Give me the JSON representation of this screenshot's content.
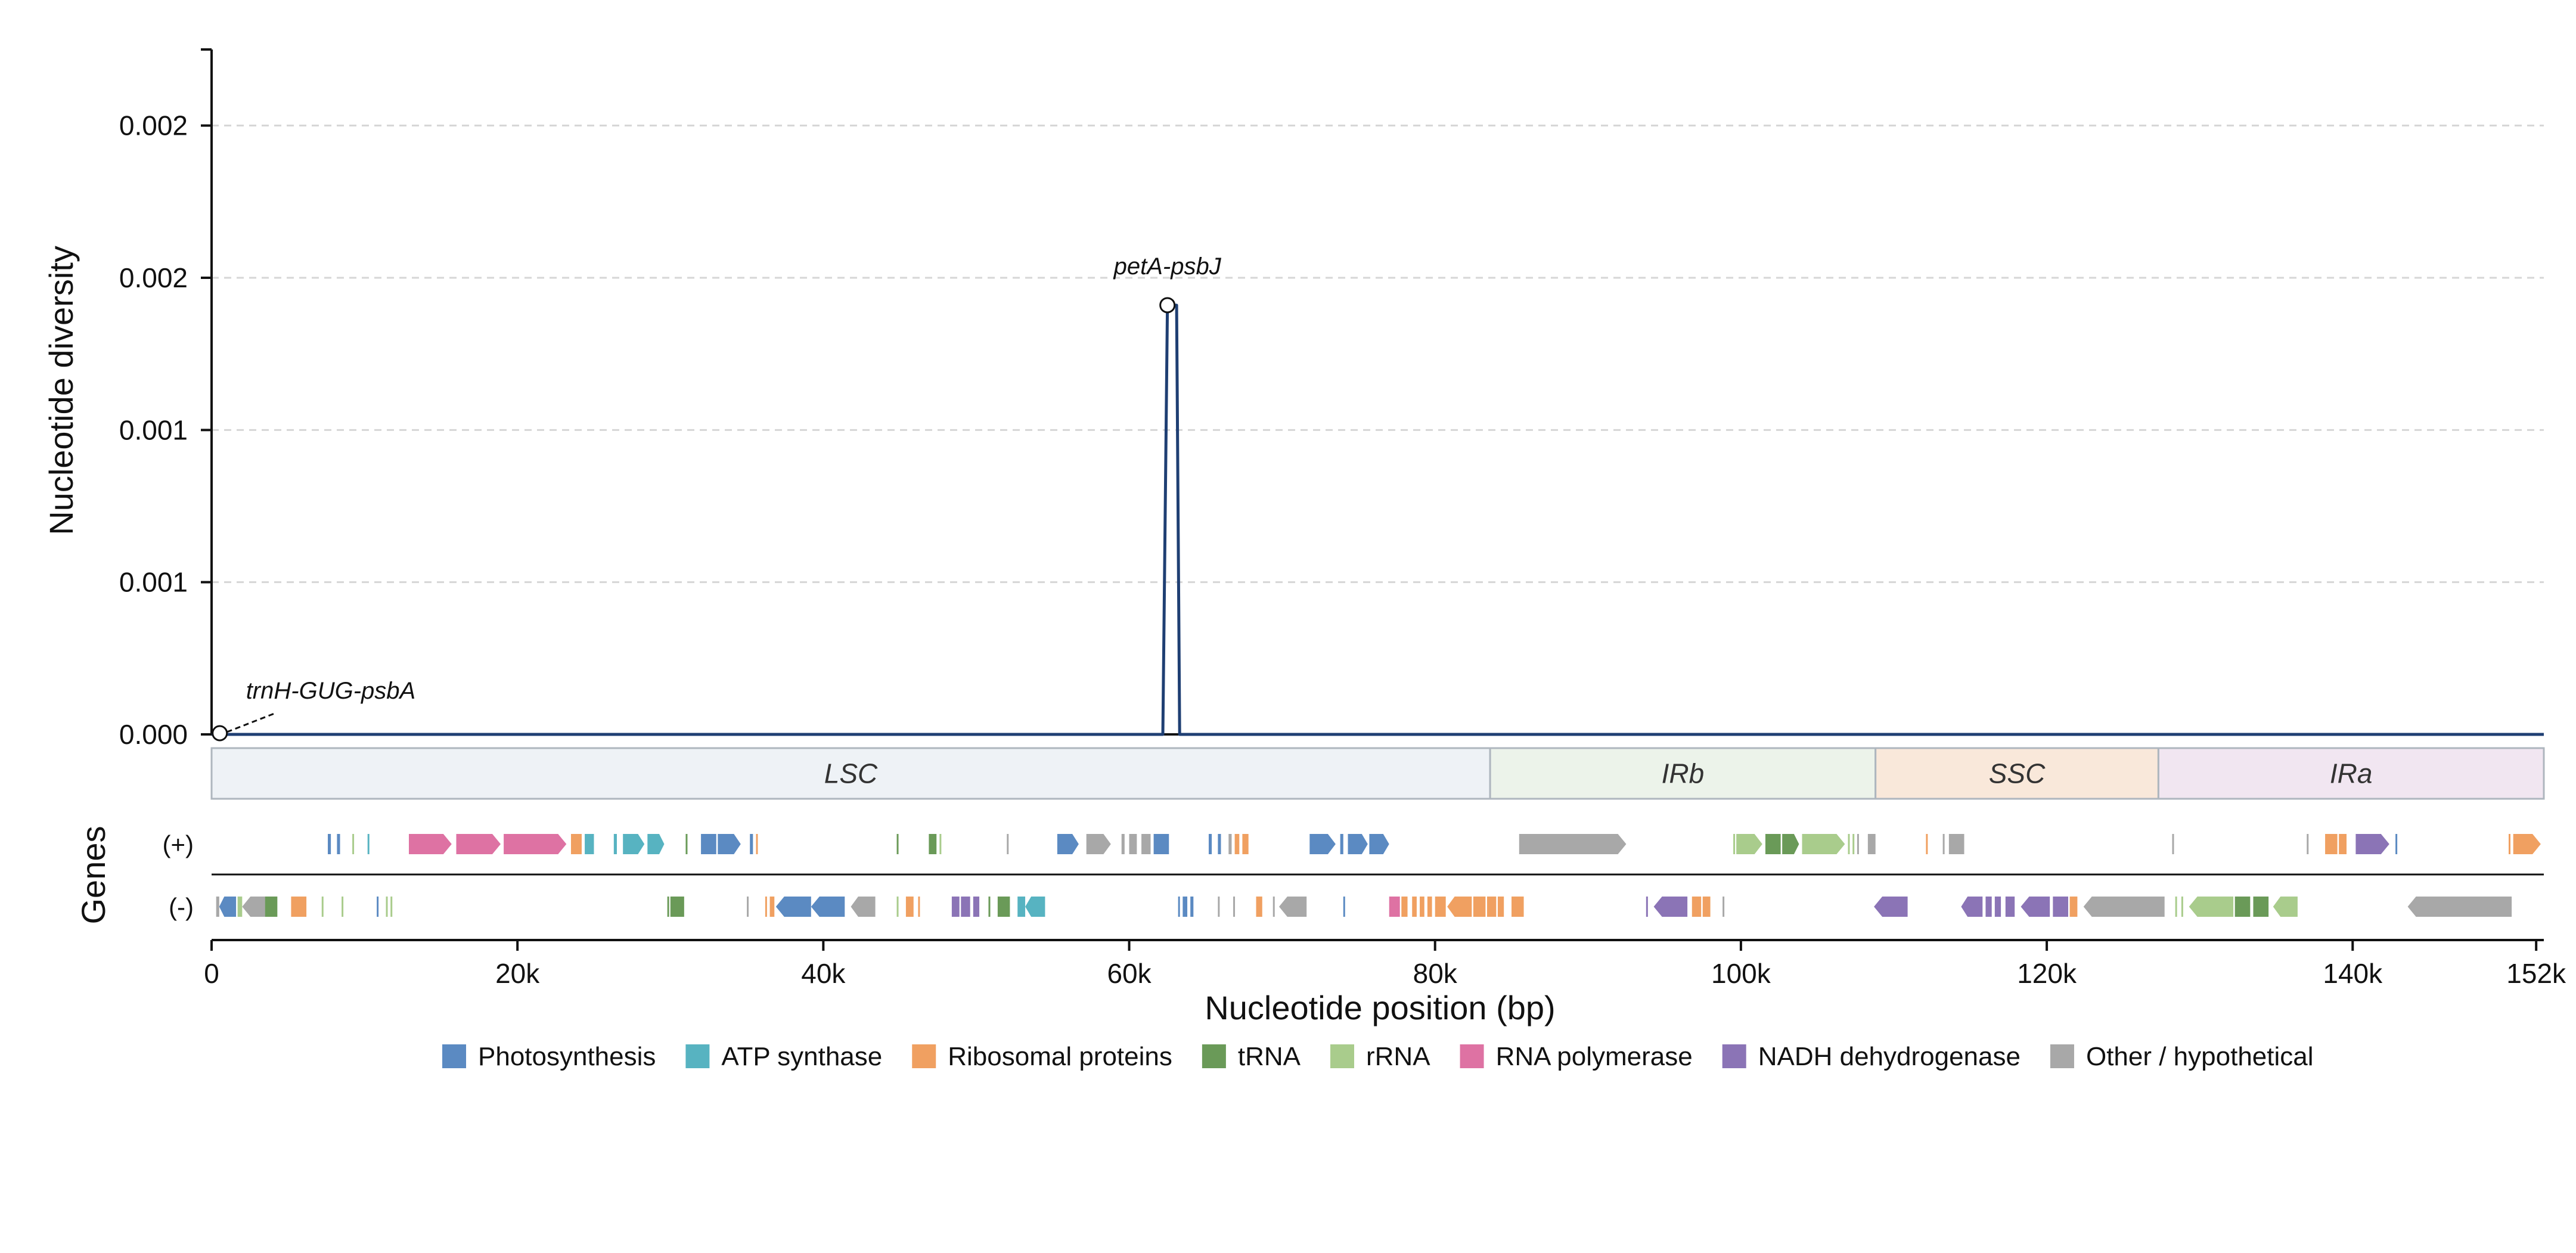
{
  "chart_data": {
    "type": "line",
    "ylabel": "Nucleotide diversity",
    "xlabel": "Nucleotide position (bp)",
    "xlim": [
      0,
      152500
    ],
    "ylim": [
      0,
      0.00225
    ],
    "grid": true,
    "x_ticks": [
      0,
      20000,
      40000,
      60000,
      80000,
      100000,
      120000,
      140000,
      152000
    ],
    "x_tick_labels": [
      "0",
      "20k",
      "40k",
      "60k",
      "80k",
      "100k",
      "120k",
      "140k",
      "152k"
    ],
    "y_ticks": [
      0,
      0.0005,
      0.001,
      0.0015,
      0.002
    ],
    "y_tick_labels": [
      "0.000",
      "0.001",
      "0.001",
      "0.002",
      "0.002"
    ],
    "series": [
      {
        "color": "#1f3f73",
        "x": [
          0,
          62200,
          62500,
          63100,
          63300,
          152500
        ],
        "y": [
          0,
          0,
          0.00141,
          0.00141,
          0,
          0
        ]
      }
    ],
    "annotations": [
      {
        "text": "trnH-GUG-psbA",
        "x": 300,
        "y": 0
      },
      {
        "text": "petA-psbJ",
        "x": 62500,
        "y": 0.00141
      }
    ],
    "regions": [
      {
        "name": "LSC",
        "start": 0,
        "end": 83600,
        "color": "#eef2f6"
      },
      {
        "name": "IRb",
        "start": 83600,
        "end": 108800,
        "color": "#ecf3ea"
      },
      {
        "name": "SSC",
        "start": 108800,
        "end": 127300,
        "color": "#f9e8da"
      },
      {
        "name": "IRa",
        "start": 127300,
        "end": 152500,
        "color": "#f1e6f1"
      }
    ],
    "gene_track_label": "Genes",
    "strand_labels": [
      "(+)",
      "(-)"
    ],
    "legend": [
      {
        "label": "Photosynthesis",
        "color": "#5b8ac2"
      },
      {
        "label": "ATP synthase",
        "color": "#57b3c1"
      },
      {
        "label": "Ribosomal proteins",
        "color": "#f0a061"
      },
      {
        "label": "tRNA",
        "color": "#6a9a58"
      },
      {
        "label": "rRNA",
        "color": "#a9cc8c"
      },
      {
        "label": "RNA polymerase",
        "color": "#de72a3"
      },
      {
        "label": "NADH dehydrogenase",
        "color": "#8b74b6"
      },
      {
        "label": "Other / hypothetical",
        "color": "#a8a8a8"
      }
    ],
    "genes": [
      {
        "strand": "+",
        "start": 7600,
        "end": 7800,
        "cat": "Photosynthesis"
      },
      {
        "strand": "+",
        "start": 8200,
        "end": 8400,
        "cat": "Photosynthesis"
      },
      {
        "strand": "+",
        "start": 9200,
        "end": 9300,
        "cat": "rRNA"
      },
      {
        "strand": "+",
        "start": 10200,
        "end": 10300,
        "cat": "ATP synthase"
      },
      {
        "strand": "+",
        "start": 12900,
        "end": 15700,
        "cat": "RNA polymerase"
      },
      {
        "strand": "+",
        "start": 16000,
        "end": 18900,
        "cat": "RNA polymerase"
      },
      {
        "strand": "+",
        "start": 19100,
        "end": 23200,
        "cat": "RNA polymerase"
      },
      {
        "strand": "+",
        "start": 23500,
        "end": 24200,
        "cat": "Ribosomal proteins"
      },
      {
        "strand": "+",
        "start": 24400,
        "end": 25000,
        "cat": "ATP synthase"
      },
      {
        "strand": "+",
        "start": 26300,
        "end": 26500,
        "cat": "ATP synthase"
      },
      {
        "strand": "+",
        "start": 26900,
        "end": 28300,
        "cat": "ATP synthase"
      },
      {
        "strand": "+",
        "start": 28500,
        "end": 29600,
        "cat": "ATP synthase"
      },
      {
        "strand": "+",
        "start": 31000,
        "end": 31100,
        "cat": "tRNA"
      },
      {
        "strand": "+",
        "start": 32000,
        "end": 33000,
        "cat": "Photosynthesis"
      },
      {
        "strand": "+",
        "start": 33100,
        "end": 34600,
        "cat": "Photosynthesis"
      },
      {
        "strand": "+",
        "start": 35200,
        "end": 35400,
        "cat": "Photosynthesis"
      },
      {
        "strand": "+",
        "start": 35600,
        "end": 35700,
        "cat": "Ribosomal proteins"
      },
      {
        "strand": "+",
        "start": 44800,
        "end": 44900,
        "cat": "tRNA"
      },
      {
        "strand": "+",
        "start": 46900,
        "end": 47400,
        "cat": "tRNA"
      },
      {
        "strand": "+",
        "start": 47600,
        "end": 47700,
        "cat": "rRNA"
      },
      {
        "strand": "+",
        "start": 52000,
        "end": 52100,
        "cat": "Other / hypothetical"
      },
      {
        "strand": "+",
        "start": 55300,
        "end": 56700,
        "cat": "Photosynthesis"
      },
      {
        "strand": "+",
        "start": 57200,
        "end": 58800,
        "cat": "Other / hypothetical"
      },
      {
        "strand": "+",
        "start": 59500,
        "end": 59700,
        "cat": "Other / hypothetical"
      },
      {
        "strand": "+",
        "start": 60000,
        "end": 60500,
        "cat": "Other / hypothetical"
      },
      {
        "strand": "+",
        "start": 60800,
        "end": 61400,
        "cat": "Other / hypothetical"
      },
      {
        "strand": "+",
        "start": 61600,
        "end": 62600,
        "cat": "Photosynthesis"
      },
      {
        "strand": "+",
        "start": 65200,
        "end": 65400,
        "cat": "Photosynthesis"
      },
      {
        "strand": "+",
        "start": 65800,
        "end": 66000,
        "cat": "Photosynthesis"
      },
      {
        "strand": "+",
        "start": 66500,
        "end": 66700,
        "cat": "Other / hypothetical"
      },
      {
        "strand": "+",
        "start": 66900,
        "end": 67200,
        "cat": "Ribosomal proteins"
      },
      {
        "strand": "+",
        "start": 67400,
        "end": 67800,
        "cat": "Ribosomal proteins"
      },
      {
        "strand": "+",
        "start": 71800,
        "end": 73500,
        "cat": "Photosynthesis"
      },
      {
        "strand": "+",
        "start": 73800,
        "end": 74000,
        "cat": "Photosynthesis"
      },
      {
        "strand": "+",
        "start": 74300,
        "end": 75600,
        "cat": "Photosynthesis"
      },
      {
        "strand": "+",
        "start": 75700,
        "end": 77000,
        "cat": "Photosynthesis"
      },
      {
        "strand": "+",
        "start": 85500,
        "end": 92500,
        "cat": "Other / hypothetical"
      },
      {
        "strand": "+",
        "start": 99500,
        "end": 99600,
        "cat": "rRNA"
      },
      {
        "strand": "+",
        "start": 99700,
        "end": 101400,
        "cat": "rRNA"
      },
      {
        "strand": "+",
        "start": 101600,
        "end": 102600,
        "cat": "tRNA"
      },
      {
        "strand": "+",
        "start": 102700,
        "end": 103800,
        "cat": "tRNA"
      },
      {
        "strand": "+",
        "start": 104000,
        "end": 106800,
        "cat": "rRNA"
      },
      {
        "strand": "+",
        "start": 107000,
        "end": 107100,
        "cat": "rRNA"
      },
      {
        "strand": "+",
        "start": 107300,
        "end": 107400,
        "cat": "rRNA"
      },
      {
        "strand": "+",
        "start": 107600,
        "end": 107700,
        "cat": "Other / hypothetical"
      },
      {
        "strand": "+",
        "start": 108300,
        "end": 108800,
        "cat": "Other / hypothetical"
      },
      {
        "strand": "+",
        "start": 112100,
        "end": 112200,
        "cat": "Ribosomal proteins"
      },
      {
        "strand": "+",
        "start": 113200,
        "end": 113300,
        "cat": "Other / hypothetical"
      },
      {
        "strand": "+",
        "start": 113600,
        "end": 114600,
        "cat": "Other / hypothetical"
      },
      {
        "strand": "+",
        "start": 128200,
        "end": 128300,
        "cat": "Other / hypothetical"
      },
      {
        "strand": "+",
        "start": 137000,
        "end": 137100,
        "cat": "Other / hypothetical"
      },
      {
        "strand": "+",
        "start": 138200,
        "end": 139000,
        "cat": "Ribosomal proteins"
      },
      {
        "strand": "+",
        "start": 139100,
        "end": 139600,
        "cat": "Ribosomal proteins"
      },
      {
        "strand": "+",
        "start": 140200,
        "end": 142400,
        "cat": "NADH dehydrogenase"
      },
      {
        "strand": "+",
        "start": 142800,
        "end": 142900,
        "cat": "Photosynthesis"
      },
      {
        "strand": "+",
        "start": 150200,
        "end": 150300,
        "cat": "Ribosomal proteins"
      },
      {
        "strand": "+",
        "start": 150500,
        "end": 152300,
        "cat": "Ribosomal proteins"
      },
      {
        "strand": "-",
        "start": 300,
        "end": 500,
        "cat": "Other / hypothetical"
      },
      {
        "strand": "-",
        "start": 500,
        "end": 1600,
        "cat": "Photosynthesis"
      },
      {
        "strand": "-",
        "start": 1700,
        "end": 2000,
        "cat": "rRNA"
      },
      {
        "strand": "-",
        "start": 2000,
        "end": 3800,
        "cat": "Other / hypothetical"
      },
      {
        "strand": "-",
        "start": 3500,
        "end": 4300,
        "cat": "tRNA"
      },
      {
        "strand": "-",
        "start": 5200,
        "end": 6200,
        "cat": "Ribosomal proteins"
      },
      {
        "strand": "-",
        "start": 7200,
        "end": 7300,
        "cat": "rRNA"
      },
      {
        "strand": "-",
        "start": 8500,
        "end": 8600,
        "cat": "rRNA"
      },
      {
        "strand": "-",
        "start": 10800,
        "end": 10900,
        "cat": "Photosynthesis"
      },
      {
        "strand": "-",
        "start": 11400,
        "end": 11500,
        "cat": "rRNA"
      },
      {
        "strand": "-",
        "start": 11700,
        "end": 11800,
        "cat": "rRNA"
      },
      {
        "strand": "-",
        "start": 29800,
        "end": 29900,
        "cat": "tRNA"
      },
      {
        "strand": "-",
        "start": 30000,
        "end": 30900,
        "cat": "tRNA"
      },
      {
        "strand": "-",
        "start": 35000,
        "end": 35100,
        "cat": "Other / hypothetical"
      },
      {
        "strand": "-",
        "start": 36200,
        "end": 36300,
        "cat": "Ribosomal proteins"
      },
      {
        "strand": "-",
        "start": 36500,
        "end": 36800,
        "cat": "Ribosomal proteins"
      },
      {
        "strand": "-",
        "start": 36900,
        "end": 39200,
        "cat": "Photosynthesis"
      },
      {
        "strand": "-",
        "start": 39200,
        "end": 41400,
        "cat": "Photosynthesis"
      },
      {
        "strand": "-",
        "start": 41800,
        "end": 43400,
        "cat": "Other / hypothetical"
      },
      {
        "strand": "-",
        "start": 44800,
        "end": 44900,
        "cat": "rRNA"
      },
      {
        "strand": "-",
        "start": 45400,
        "end": 45900,
        "cat": "Ribosomal proteins"
      },
      {
        "strand": "-",
        "start": 46200,
        "end": 46300,
        "cat": "Ribosomal proteins"
      },
      {
        "strand": "-",
        "start": 48400,
        "end": 48900,
        "cat": "NADH dehydrogenase"
      },
      {
        "strand": "-",
        "start": 49000,
        "end": 49600,
        "cat": "NADH dehydrogenase"
      },
      {
        "strand": "-",
        "start": 49800,
        "end": 50200,
        "cat": "NADH dehydrogenase"
      },
      {
        "strand": "-",
        "start": 50800,
        "end": 50900,
        "cat": "tRNA"
      },
      {
        "strand": "-",
        "start": 51400,
        "end": 52200,
        "cat": "tRNA"
      },
      {
        "strand": "-",
        "start": 52700,
        "end": 53200,
        "cat": "ATP synthase"
      },
      {
        "strand": "-",
        "start": 53200,
        "end": 54500,
        "cat": "ATP synthase"
      },
      {
        "strand": "-",
        "start": 63200,
        "end": 63300,
        "cat": "Photosynthesis"
      },
      {
        "strand": "-",
        "start": 63500,
        "end": 63800,
        "cat": "Photosynthesis"
      },
      {
        "strand": "-",
        "start": 64000,
        "end": 64200,
        "cat": "Photosynthesis"
      },
      {
        "strand": "-",
        "start": 65800,
        "end": 65900,
        "cat": "Other / hypothetical"
      },
      {
        "strand": "-",
        "start": 66800,
        "end": 66900,
        "cat": "Other / hypothetical"
      },
      {
        "strand": "-",
        "start": 68300,
        "end": 68700,
        "cat": "Ribosomal proteins"
      },
      {
        "strand": "-",
        "start": 69400,
        "end": 69500,
        "cat": "Other / hypothetical"
      },
      {
        "strand": "-",
        "start": 69800,
        "end": 71600,
        "cat": "Other / hypothetical"
      },
      {
        "strand": "-",
        "start": 74000,
        "end": 74100,
        "cat": "Photosynthesis"
      },
      {
        "strand": "-",
        "start": 77000,
        "end": 77700,
        "cat": "RNA polymerase"
      },
      {
        "strand": "-",
        "start": 77800,
        "end": 78200,
        "cat": "Ribosomal proteins"
      },
      {
        "strand": "-",
        "start": 78500,
        "end": 78800,
        "cat": "Ribosomal proteins"
      },
      {
        "strand": "-",
        "start": 79000,
        "end": 79300,
        "cat": "Ribosomal proteins"
      },
      {
        "strand": "-",
        "start": 79500,
        "end": 79800,
        "cat": "Ribosomal proteins"
      },
      {
        "strand": "-",
        "start": 80000,
        "end": 80700,
        "cat": "Ribosomal proteins"
      },
      {
        "strand": "-",
        "start": 80800,
        "end": 82400,
        "cat": "Ribosomal proteins"
      },
      {
        "strand": "-",
        "start": 82500,
        "end": 83300,
        "cat": "Ribosomal proteins"
      },
      {
        "strand": "-",
        "start": 83400,
        "end": 84000,
        "cat": "Ribosomal proteins"
      },
      {
        "strand": "-",
        "start": 84100,
        "end": 84500,
        "cat": "Ribosomal proteins"
      },
      {
        "strand": "-",
        "start": 85000,
        "end": 85800,
        "cat": "Ribosomal proteins"
      },
      {
        "strand": "-",
        "start": 93800,
        "end": 93900,
        "cat": "NADH dehydrogenase"
      },
      {
        "strand": "-",
        "start": 94300,
        "end": 96500,
        "cat": "NADH dehydrogenase"
      },
      {
        "strand": "-",
        "start": 96800,
        "end": 97400,
        "cat": "Ribosomal proteins"
      },
      {
        "strand": "-",
        "start": 97500,
        "end": 98000,
        "cat": "Ribosomal proteins"
      },
      {
        "strand": "-",
        "start": 98800,
        "end": 98900,
        "cat": "Other / hypothetical"
      },
      {
        "strand": "-",
        "start": 108700,
        "end": 110900,
        "cat": "NADH dehydrogenase"
      },
      {
        "strand": "-",
        "start": 114400,
        "end": 115800,
        "cat": "NADH dehydrogenase"
      },
      {
        "strand": "-",
        "start": 116000,
        "end": 116400,
        "cat": "NADH dehydrogenase"
      },
      {
        "strand": "-",
        "start": 116600,
        "end": 117000,
        "cat": "NADH dehydrogenase"
      },
      {
        "strand": "-",
        "start": 117300,
        "end": 117900,
        "cat": "NADH dehydrogenase"
      },
      {
        "strand": "-",
        "start": 118300,
        "end": 120200,
        "cat": "NADH dehydrogenase"
      },
      {
        "strand": "-",
        "start": 120400,
        "end": 121400,
        "cat": "NADH dehydrogenase"
      },
      {
        "strand": "-",
        "start": 121500,
        "end": 122000,
        "cat": "Ribosomal proteins"
      },
      {
        "strand": "-",
        "start": 122400,
        "end": 127700,
        "cat": "Other / hypothetical"
      },
      {
        "strand": "-",
        "start": 128400,
        "end": 128500,
        "cat": "rRNA"
      },
      {
        "strand": "-",
        "start": 128800,
        "end": 128900,
        "cat": "rRNA"
      },
      {
        "strand": "-",
        "start": 129300,
        "end": 132200,
        "cat": "rRNA"
      },
      {
        "strand": "-",
        "start": 132300,
        "end": 133300,
        "cat": "tRNA"
      },
      {
        "strand": "-",
        "start": 133500,
        "end": 134500,
        "cat": "tRNA"
      },
      {
        "strand": "-",
        "start": 134800,
        "end": 136400,
        "cat": "rRNA"
      },
      {
        "strand": "-",
        "start": 143600,
        "end": 150400,
        "cat": "Other / hypothetical"
      }
    ]
  }
}
